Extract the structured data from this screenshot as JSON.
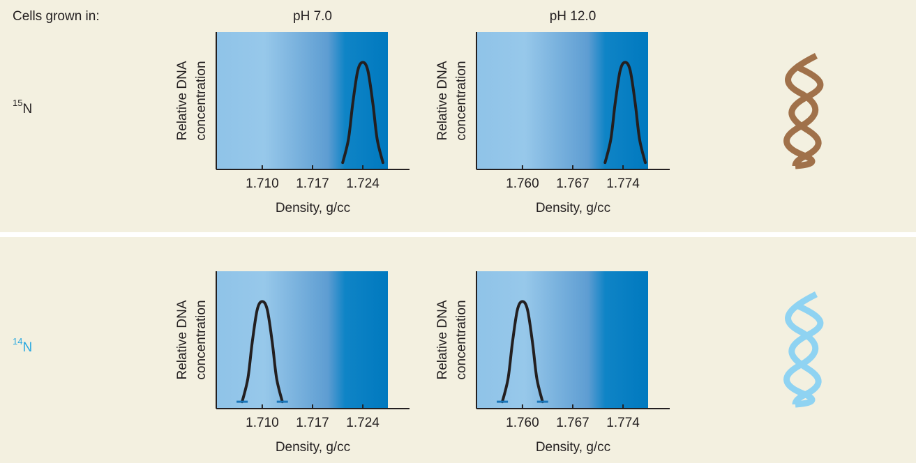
{
  "header": "Cells grown in:",
  "columns": [
    "pH 7.0",
    "pH 12.0"
  ],
  "rows": [
    {
      "mass": "15",
      "symbol": "N",
      "color": "#231f20"
    },
    {
      "mass": "14",
      "symbol": "N",
      "color": "#29a8e0"
    }
  ],
  "chart_data": [
    {
      "type": "line",
      "xlabel": "Density, g/cc",
      "ylabel": [
        "Relative DNA",
        "concentration"
      ],
      "xlim": [
        1.7036,
        1.7305
      ],
      "ylim": [
        0,
        1
      ],
      "xticks": [
        {
          "value": 1.71,
          "label": "1.710"
        },
        {
          "value": 1.717,
          "label": "1.717"
        },
        {
          "value": 1.724,
          "label": "1.724"
        }
      ],
      "x": [
        1.7212,
        1.722,
        1.7226,
        1.7233,
        1.724,
        1.7247,
        1.7254,
        1.726,
        1.7268
      ],
      "series": [
        {
          "values": [
            0.05,
            0.22,
            0.48,
            0.72,
            0.78,
            0.72,
            0.48,
            0.22,
            0.05
          ],
          "color": "#231f20"
        }
      ],
      "end_caps": false
    },
    {
      "type": "line",
      "xlabel": "Density, g/cc",
      "ylabel": [
        "Relative DNA",
        "concentration"
      ],
      "xlim": [
        1.7536,
        1.7805
      ],
      "ylim": [
        0,
        1
      ],
      "xticks": [
        {
          "value": 1.76,
          "label": "1.760"
        },
        {
          "value": 1.767,
          "label": "1.767"
        },
        1.774
      ],
      "x": [
        1.7715,
        1.7723,
        1.7729,
        1.7736,
        1.7743,
        1.775,
        1.7757,
        1.7763,
        1.7771
      ],
      "series": [
        {
          "values": [
            0.05,
            0.22,
            0.48,
            0.72,
            0.78,
            0.72,
            0.48,
            0.22,
            0.05
          ],
          "color": "#231f20"
        }
      ],
      "end_caps": false
    },
    {
      "type": "line",
      "xlabel": "Density, g/cc",
      "ylabel": [
        "Relative DNA",
        "concentration"
      ],
      "xlim": [
        1.7036,
        1.7305
      ],
      "ylim": [
        0,
        1
      ],
      "xticks": [
        {
          "value": 1.71,
          "label": "1.710"
        },
        {
          "value": 1.717,
          "label": "1.717"
        },
        {
          "value": 1.724,
          "label": "1.724"
        }
      ],
      "x": [
        1.7072,
        1.708,
        1.7086,
        1.7093,
        1.71,
        1.7107,
        1.7114,
        1.712,
        1.7128
      ],
      "series": [
        {
          "values": [
            0.05,
            0.22,
            0.48,
            0.72,
            0.78,
            0.72,
            0.48,
            0.22,
            0.05
          ],
          "color": "#231f20"
        }
      ],
      "end_caps": true
    },
    {
      "type": "line",
      "xlabel": "Density, g/cc",
      "ylabel": [
        "Relative DNA",
        "concentration"
      ],
      "xlim": [
        1.7536,
        1.7805
      ],
      "ylim": [
        0,
        1
      ],
      "xticks": [
        {
          "value": 1.76,
          "label": "1.760"
        },
        {
          "value": 1.767,
          "label": "1.767"
        },
        1.774
      ],
      "x": [
        1.7572,
        1.758,
        1.7586,
        1.7593,
        1.76,
        1.7607,
        1.7614,
        1.762,
        1.7628
      ],
      "series": [
        {
          "values": [
            0.05,
            0.22,
            0.48,
            0.72,
            0.78,
            0.72,
            0.48,
            0.22,
            0.05
          ],
          "color": "#231f20"
        }
      ],
      "end_caps": true
    }
  ]
}
